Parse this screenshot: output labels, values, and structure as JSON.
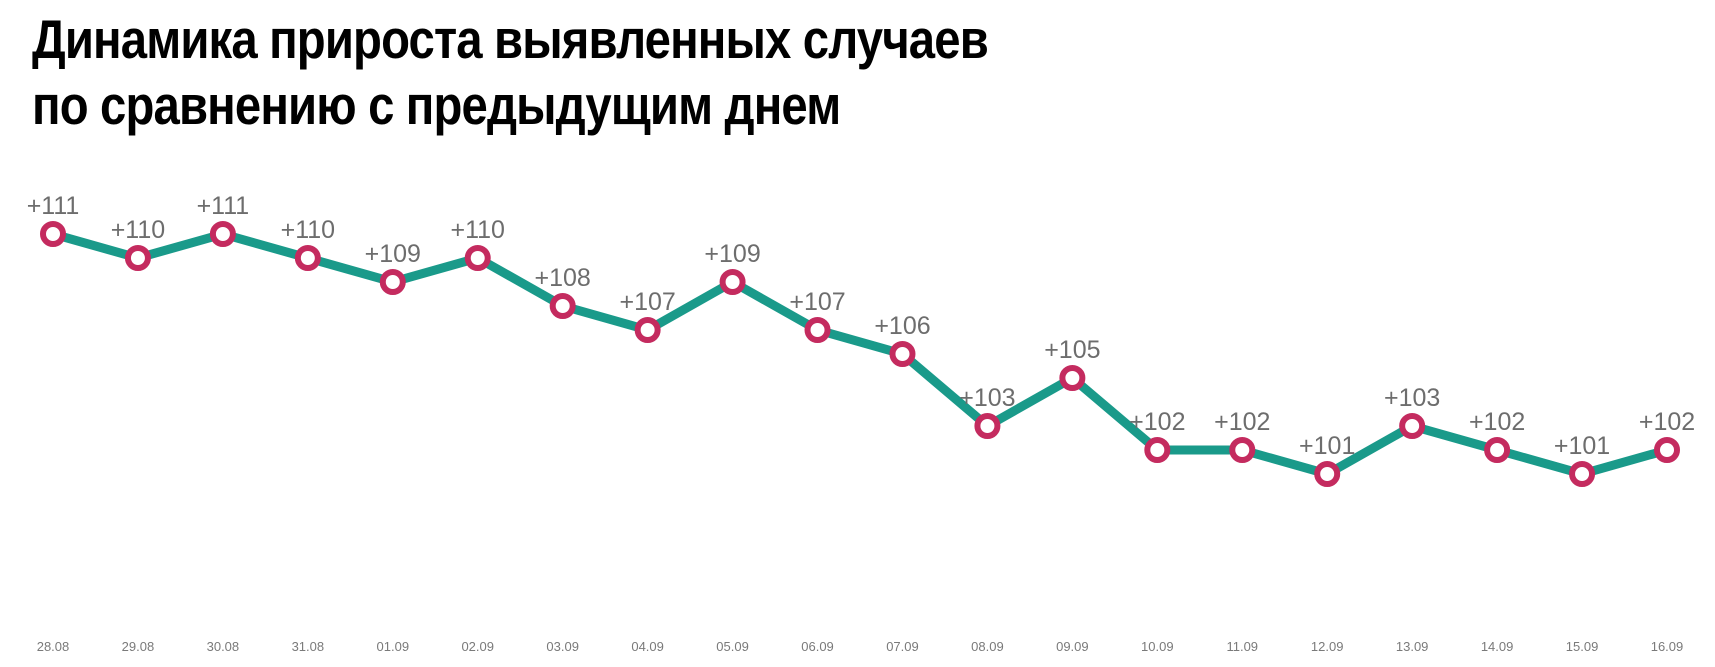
{
  "title": {
    "line1": "Динамика прироста выявленных случаев",
    "line2": "по сравнению с предыдущим днем"
  },
  "colors": {
    "line": "#1a9a8a",
    "marker_stroke": "#c42b5f",
    "marker_fill": "#ffffff",
    "label": "#6d6d6d",
    "tick": "#7a7a7a"
  },
  "chart_data": {
    "type": "line",
    "categories": [
      "28.08",
      "29.08",
      "30.08",
      "31.08",
      "01.09",
      "02.09",
      "03.09",
      "04.09",
      "05.09",
      "06.09",
      "07.09",
      "08.09",
      "09.09",
      "10.09",
      "11.09",
      "12.09",
      "13.09",
      "14.09",
      "15.09",
      "16.09"
    ],
    "values": [
      111,
      110,
      111,
      110,
      109,
      110,
      108,
      107,
      109,
      107,
      106,
      103,
      105,
      102,
      102,
      101,
      103,
      102,
      101,
      102
    ],
    "labels": [
      "+111",
      "+110",
      "+111",
      "+110",
      "+109",
      "+110",
      "+108",
      "+107",
      "+109",
      "+107",
      "+106",
      "+103",
      "+105",
      "+102",
      "+102",
      "+101",
      "+103",
      "+102",
      "+101",
      "+102"
    ],
    "title": "Динамика прироста выявленных случаев по сравнению с предыдущим днем",
    "xlabel": "",
    "ylabel": "",
    "ylim": [
      97,
      111
    ],
    "grid": false,
    "legend": "none"
  }
}
